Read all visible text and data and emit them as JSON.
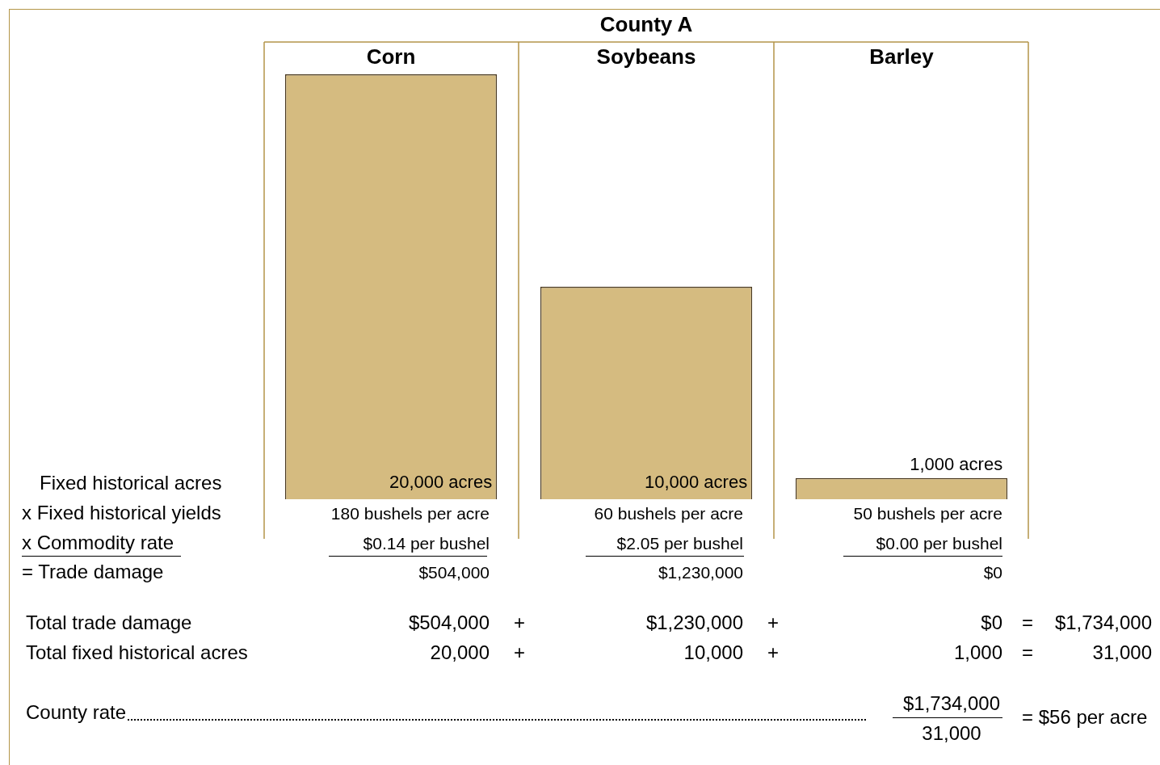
{
  "chart_data": {
    "type": "bar",
    "title": "County A",
    "categories": [
      "Corn",
      "Soybeans",
      "Barley"
    ],
    "values": [
      20000,
      10000,
      1000
    ],
    "value_labels": [
      "20,000 acres",
      "10,000 acres",
      "1,000 acres"
    ],
    "color": "#d5bb80",
    "grid": "x",
    "annotations": [
      "Fixed historical acres",
      "x Fixed historical yields",
      "180 bushels per acre",
      "60 bushels per acre",
      "50 bushels per acre",
      "x Commodity rate",
      "$0.14 per bushel",
      "$2.05 per bushel",
      "$0.00 per bushel",
      "= Trade damage",
      "$504,000",
      "$1,230,000",
      "$0",
      "Total trade damage",
      "$504,000",
      "+",
      "$1,230,000",
      "+",
      "$0",
      "=",
      "$1,734,000",
      "Total fixed historical acres",
      "20,000",
      "+",
      "10,000",
      "+",
      "1,000",
      "=",
      "31,000",
      "County rate",
      "$1,734,000",
      "31,000",
      "= $56 per acre"
    ]
  }
}
